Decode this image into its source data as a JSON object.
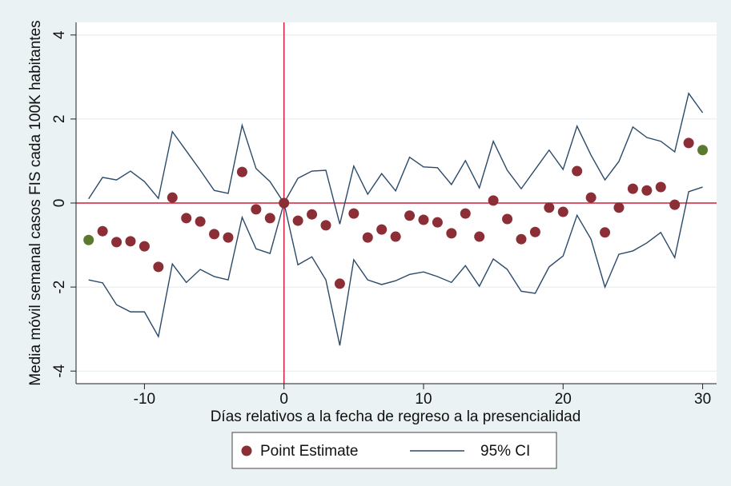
{
  "chart_data": {
    "type": "event-study",
    "x_label": "Días relativos a la fecha de regreso a la presencialidad",
    "y_label": "Media móvil semanal casos FIS cada 100K habitantes",
    "x": [
      -14,
      -13,
      -12,
      -11,
      -10,
      -9,
      -8,
      -7,
      -6,
      -5,
      -4,
      -3,
      -2,
      -1,
      0,
      1,
      2,
      3,
      4,
      5,
      6,
      7,
      8,
      9,
      10,
      11,
      12,
      13,
      14,
      15,
      16,
      17,
      18,
      19,
      20,
      21,
      22,
      23,
      24,
      25,
      26,
      27,
      28,
      29,
      30
    ],
    "series": [
      {
        "name": "Point Estimate",
        "color": "#8b2e36",
        "point_colors": [
          "#5b7a2f",
          "#8b2e36",
          "#8b2e36",
          "#8b2e36",
          "#8b2e36",
          "#8b2e36",
          "#8b2e36",
          "#8b2e36",
          "#8b2e36",
          "#8b2e36",
          "#8b2e36",
          "#8b2e36",
          "#8b2e36",
          "#8b2e36",
          "#8b2e36",
          "#8b2e36",
          "#8b2e36",
          "#8b2e36",
          "#8b2e36",
          "#8b2e36",
          "#8b2e36",
          "#8b2e36",
          "#8b2e36",
          "#8b2e36",
          "#8b2e36",
          "#8b2e36",
          "#8b2e36",
          "#8b2e36",
          "#8b2e36",
          "#8b2e36",
          "#8b2e36",
          "#8b2e36",
          "#8b2e36",
          "#8b2e36",
          "#8b2e36",
          "#8b2e36",
          "#8b2e36",
          "#8b2e36",
          "#8b2e36",
          "#8b2e36",
          "#8b2e36",
          "#8b2e36",
          "#8b2e36",
          "#8b2e36",
          "#5b7a2f"
        ],
        "values": [
          -0.88,
          -0.67,
          -0.93,
          -0.91,
          -1.03,
          -1.52,
          0.13,
          -0.36,
          -0.44,
          -0.74,
          -0.82,
          0.74,
          -0.15,
          -0.36,
          0,
          -0.42,
          -0.27,
          -0.53,
          -1.92,
          -0.25,
          -0.82,
          -0.63,
          -0.8,
          -0.3,
          -0.4,
          -0.46,
          -0.72,
          -0.25,
          -0.8,
          0.06,
          -0.38,
          -0.86,
          -0.69,
          -0.11,
          -0.21,
          0.76,
          0.13,
          -0.7,
          -0.11,
          0.34,
          0.3,
          0.38,
          -0.04,
          1.43,
          1.26
        ]
      },
      {
        "name": "95% CI",
        "color": "#2b4a6a",
        "upper": [
          0.1,
          0.61,
          0.55,
          0.76,
          0.51,
          0.11,
          1.7,
          1.24,
          0.78,
          0.3,
          0.23,
          1.85,
          0.82,
          0.51,
          0,
          0.59,
          0.76,
          0.78,
          -0.5,
          0.88,
          0.21,
          0.7,
          0.29,
          1.09,
          0.86,
          0.84,
          0.44,
          1.01,
          0.36,
          1.47,
          0.78,
          0.34,
          0.8,
          1.26,
          0.8,
          1.83,
          1.14,
          0.55,
          0.99,
          1.81,
          1.56,
          1.47,
          1.22,
          2.61,
          2.15
        ],
        "lower": [
          -1.83,
          -1.9,
          -2.42,
          -2.59,
          -2.59,
          -3.18,
          -1.45,
          -1.89,
          -1.58,
          -1.75,
          -1.83,
          -0.34,
          -1.09,
          -1.2,
          0,
          -1.47,
          -1.28,
          -1.83,
          -3.39,
          -1.35,
          -1.83,
          -1.94,
          -1.85,
          -1.7,
          -1.64,
          -1.75,
          -1.89,
          -1.49,
          -1.98,
          -1.33,
          -1.58,
          -2.1,
          -2.15,
          -1.52,
          -1.26,
          -0.29,
          -0.86,
          -2.0,
          -1.22,
          -1.14,
          -0.95,
          -0.7,
          -1.3,
          0.27,
          0.38
        ]
      }
    ],
    "xlim": [
      -14.9,
      31
    ],
    "ylim": [
      -4.3,
      4.3
    ],
    "xticks": [
      -10,
      0,
      10,
      20,
      30
    ],
    "yticks": [
      -4,
      -2,
      0,
      2,
      4
    ],
    "grid": true,
    "xline": 0,
    "yline": 0,
    "refline_color": "#d01f3c"
  }
}
